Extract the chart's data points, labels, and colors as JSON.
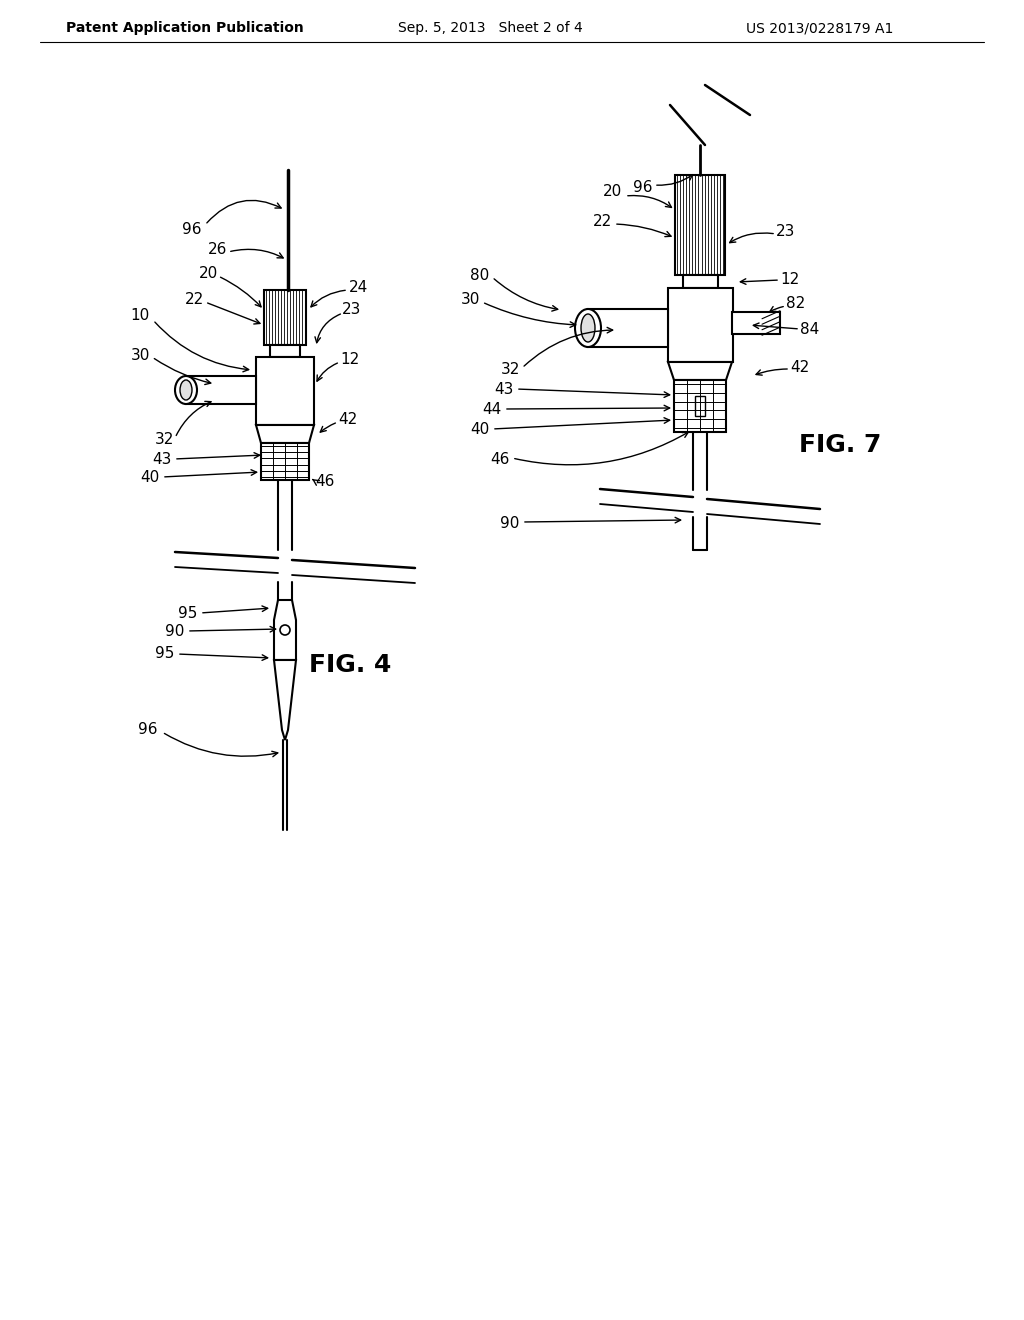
{
  "background_color": "#ffffff",
  "header_left": "Patent Application Publication",
  "header_center": "Sep. 5, 2013   Sheet 2 of 4",
  "header_right": "US 2013/0228179 A1",
  "fig4_label": "FIG. 4",
  "fig7_label": "FIG. 7",
  "line_color": "#000000",
  "text_color": "#000000"
}
